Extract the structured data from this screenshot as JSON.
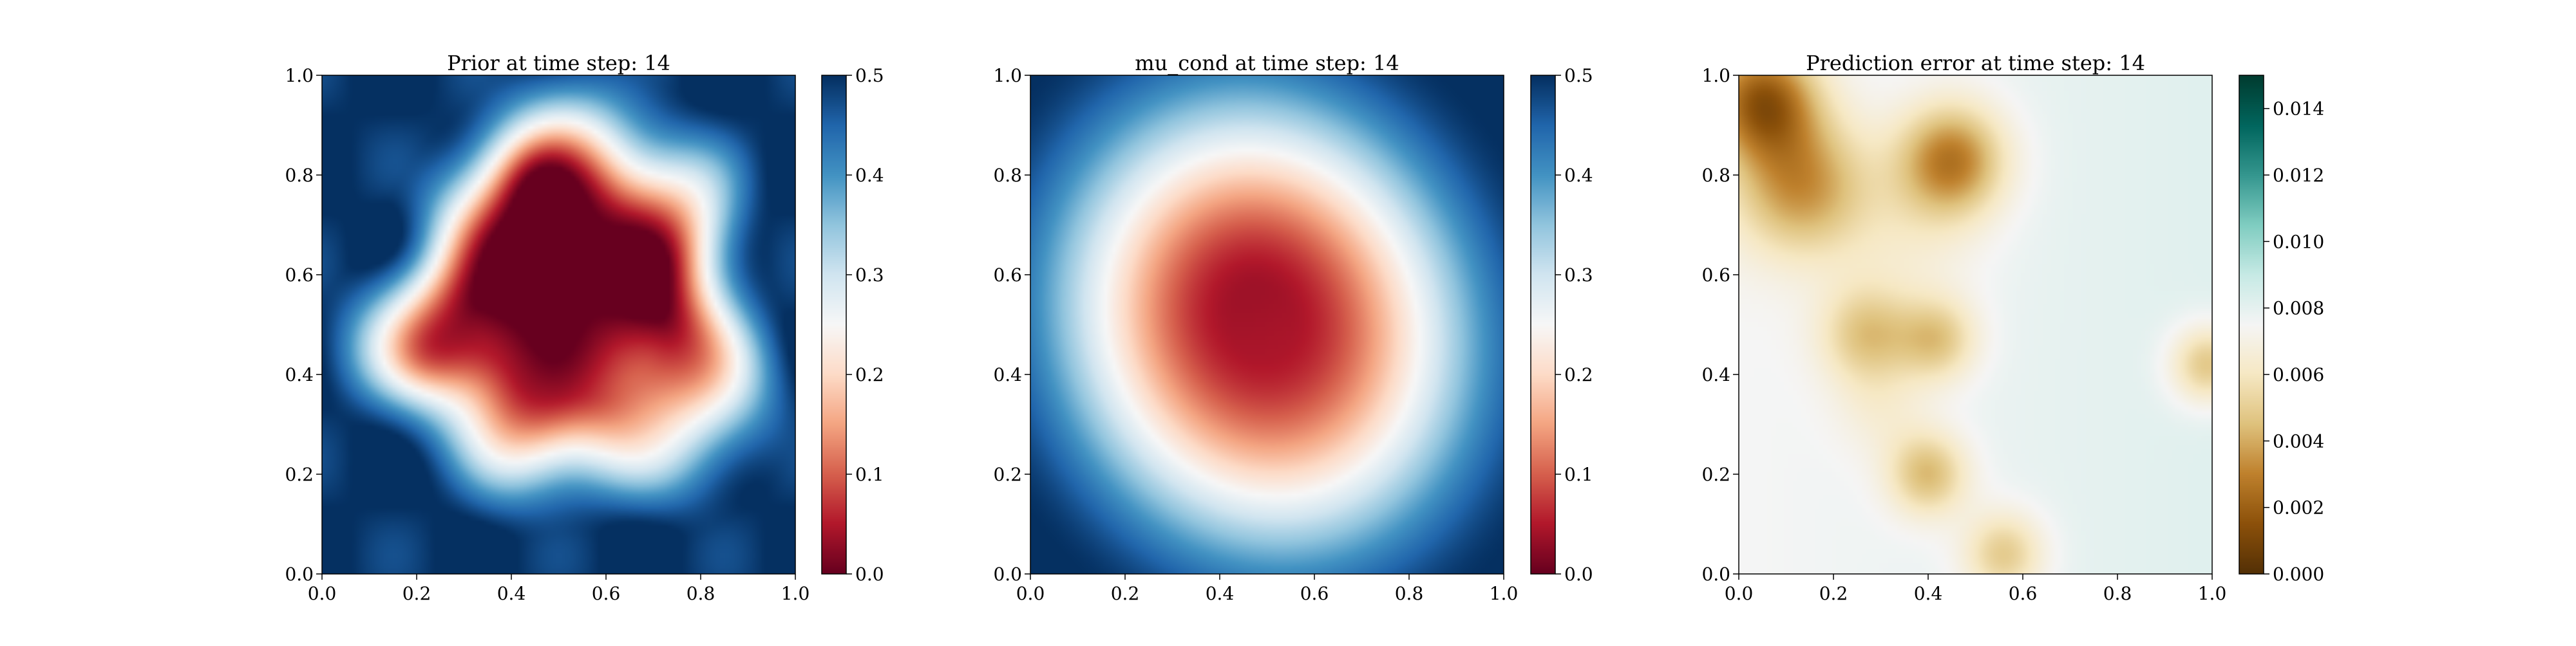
{
  "chart_data": [
    {
      "type": "heatmap",
      "title": "Prior at time step: 14",
      "xlim": [
        0.0,
        1.0
      ],
      "ylim": [
        0.0,
        1.0
      ],
      "x_ticks": [
        "0.0",
        "0.2",
        "0.4",
        "0.6",
        "0.8",
        "1.0"
      ],
      "y_ticks": [
        "0.0",
        "0.2",
        "0.4",
        "0.6",
        "0.8",
        "1.0"
      ],
      "colormap": "RdBu",
      "color_low": "#67001f",
      "color_high": "#053061",
      "colorbar_range": [
        0.0,
        0.5
      ],
      "colorbar_ticks": [
        "0.0",
        "0.1",
        "0.2",
        "0.3",
        "0.4",
        "0.5"
      ],
      "field": "noisy-blob",
      "grid": false
    },
    {
      "type": "heatmap",
      "title": "mu_cond at time step: 14",
      "xlim": [
        0.0,
        1.0
      ],
      "ylim": [
        0.0,
        1.0
      ],
      "x_ticks": [
        "0.0",
        "0.2",
        "0.4",
        "0.6",
        "0.8",
        "1.0"
      ],
      "y_ticks": [
        "0.0",
        "0.2",
        "0.4",
        "0.6",
        "0.8",
        "1.0"
      ],
      "colormap": "RdBu",
      "color_low": "#67001f",
      "color_high": "#053061",
      "colorbar_range": [
        0.0,
        0.5
      ],
      "colorbar_ticks": [
        "0.0",
        "0.1",
        "0.2",
        "0.3",
        "0.4",
        "0.5"
      ],
      "field": "smooth-blob",
      "grid": false
    },
    {
      "type": "heatmap",
      "title": "Prediction error at time step: 14",
      "xlim": [
        0.0,
        1.0
      ],
      "ylim": [
        0.0,
        1.0
      ],
      "x_ticks": [
        "0.0",
        "0.2",
        "0.4",
        "0.6",
        "0.8",
        "1.0"
      ],
      "y_ticks": [
        "0.0",
        "0.2",
        "0.4",
        "0.6",
        "0.8",
        "1.0"
      ],
      "colormap": "BrBG",
      "color_low": "#543005",
      "color_high": "#003c30",
      "colorbar_range": [
        0.0,
        0.015
      ],
      "colorbar_ticks": [
        "0.000",
        "0.002",
        "0.004",
        "0.006",
        "0.008",
        "0.010",
        "0.012",
        "0.014"
      ],
      "field": "error-spots",
      "grid": false
    }
  ]
}
